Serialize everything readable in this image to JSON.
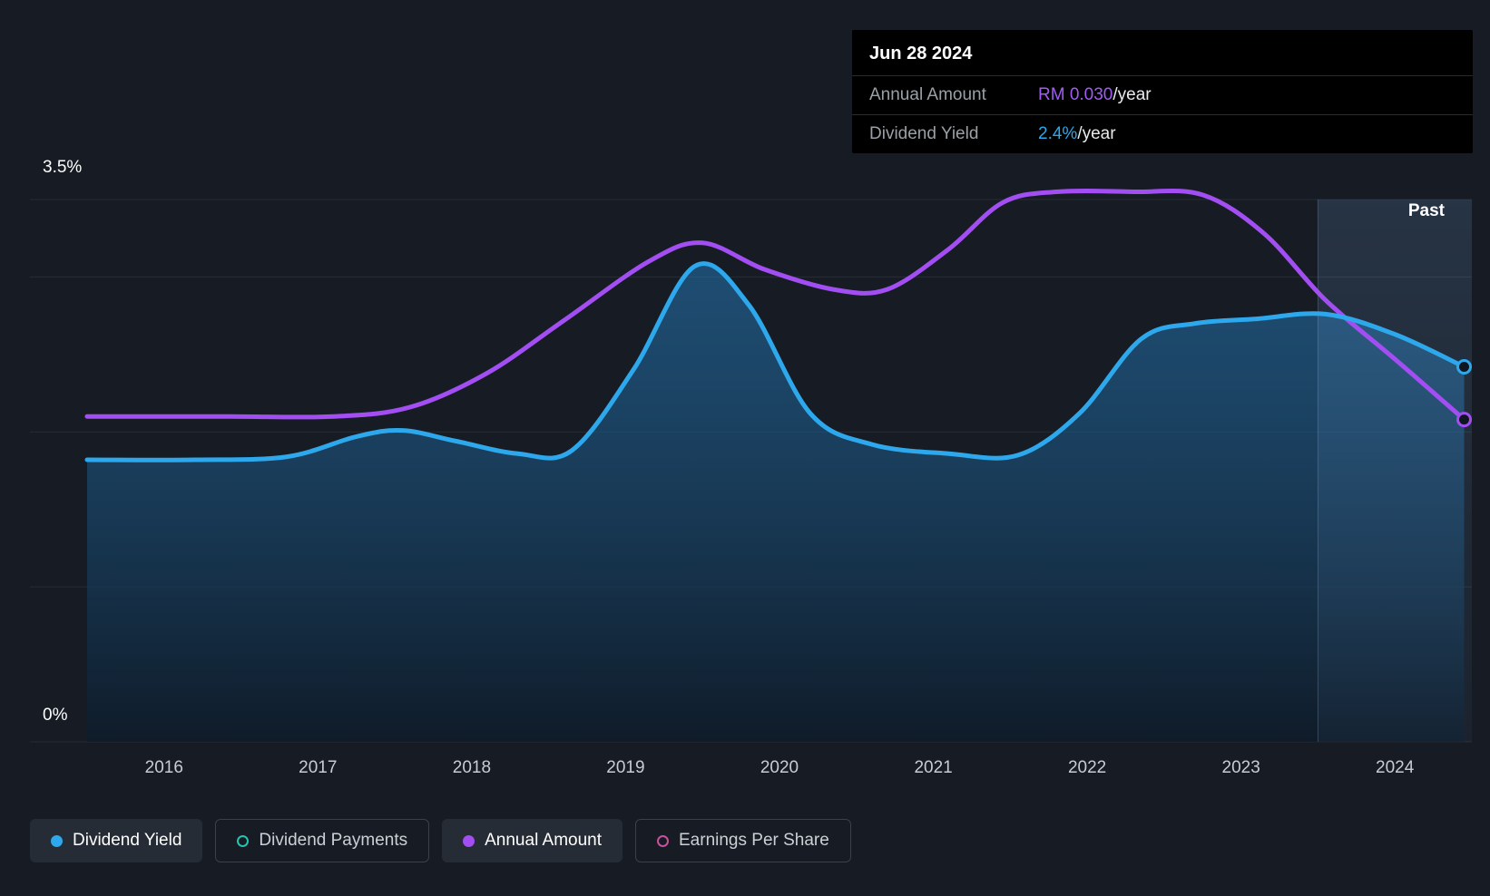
{
  "tooltip": {
    "date": "Jun 28 2024",
    "rows": [
      {
        "label": "Annual Amount",
        "value": "RM 0.030",
        "suffix": "/year",
        "color": "#A05CF5"
      },
      {
        "label": "Dividend Yield",
        "value": "2.4%",
        "suffix": "/year",
        "color": "#2EA8EC"
      }
    ]
  },
  "past_label": "Past",
  "y_axis": {
    "top_label": "3.5%",
    "bottom_label": "0%"
  },
  "x_axis": {
    "labels": [
      "2016",
      "2017",
      "2018",
      "2019",
      "2020",
      "2021",
      "2022",
      "2023",
      "2024"
    ]
  },
  "legend": [
    {
      "label": "Dividend Yield",
      "color": "#2EA8EC",
      "filled": true,
      "active": true
    },
    {
      "label": "Dividend Payments",
      "color": "#27C2AE",
      "filled": false,
      "active": false
    },
    {
      "label": "Annual Amount",
      "color": "#A24EF2",
      "filled": true,
      "active": true
    },
    {
      "label": "Earnings Per Share",
      "color": "#C8519F",
      "filled": false,
      "active": false
    }
  ],
  "chart_data": {
    "type": "line",
    "x_range": [
      2015.5,
      2024.5
    ],
    "y_range": [
      0,
      3.5
    ],
    "y_unit": "%",
    "x_ticks": [
      2016,
      2017,
      2018,
      2019,
      2020,
      2021,
      2022,
      2023,
      2024
    ],
    "gridlines": [
      3.5,
      3.0,
      2.0,
      1.0,
      0
    ],
    "past_region_start": 2023.5,
    "legend_position": "bottom",
    "series": [
      {
        "name": "Dividend Yield",
        "color": "#2EA8EC",
        "area": true,
        "points": [
          [
            2015.5,
            1.82
          ],
          [
            2016.2,
            1.82
          ],
          [
            2016.8,
            1.84
          ],
          [
            2017.25,
            1.97
          ],
          [
            2017.55,
            2.01
          ],
          [
            2017.9,
            1.94
          ],
          [
            2018.3,
            1.86
          ],
          [
            2018.65,
            1.88
          ],
          [
            2019.05,
            2.4
          ],
          [
            2019.45,
            3.07
          ],
          [
            2019.8,
            2.82
          ],
          [
            2020.2,
            2.12
          ],
          [
            2020.6,
            1.92
          ],
          [
            2021.1,
            1.86
          ],
          [
            2021.55,
            1.85
          ],
          [
            2021.95,
            2.12
          ],
          [
            2022.35,
            2.6
          ],
          [
            2022.7,
            2.7
          ],
          [
            2023.1,
            2.73
          ],
          [
            2023.55,
            2.76
          ],
          [
            2024.0,
            2.63
          ],
          [
            2024.45,
            2.42
          ]
        ]
      },
      {
        "name": "Annual Amount",
        "color": "#A24EF2",
        "area": false,
        "points": [
          [
            2015.5,
            2.1
          ],
          [
            2016.4,
            2.1
          ],
          [
            2017.1,
            2.1
          ],
          [
            2017.6,
            2.16
          ],
          [
            2018.1,
            2.38
          ],
          [
            2018.6,
            2.72
          ],
          [
            2019.15,
            3.1
          ],
          [
            2019.5,
            3.22
          ],
          [
            2019.9,
            3.05
          ],
          [
            2020.35,
            2.92
          ],
          [
            2020.7,
            2.92
          ],
          [
            2021.1,
            3.18
          ],
          [
            2021.45,
            3.48
          ],
          [
            2021.8,
            3.55
          ],
          [
            2022.3,
            3.55
          ],
          [
            2022.75,
            3.53
          ],
          [
            2023.15,
            3.28
          ],
          [
            2023.55,
            2.85
          ],
          [
            2024.0,
            2.47
          ],
          [
            2024.45,
            2.08
          ]
        ]
      }
    ]
  }
}
